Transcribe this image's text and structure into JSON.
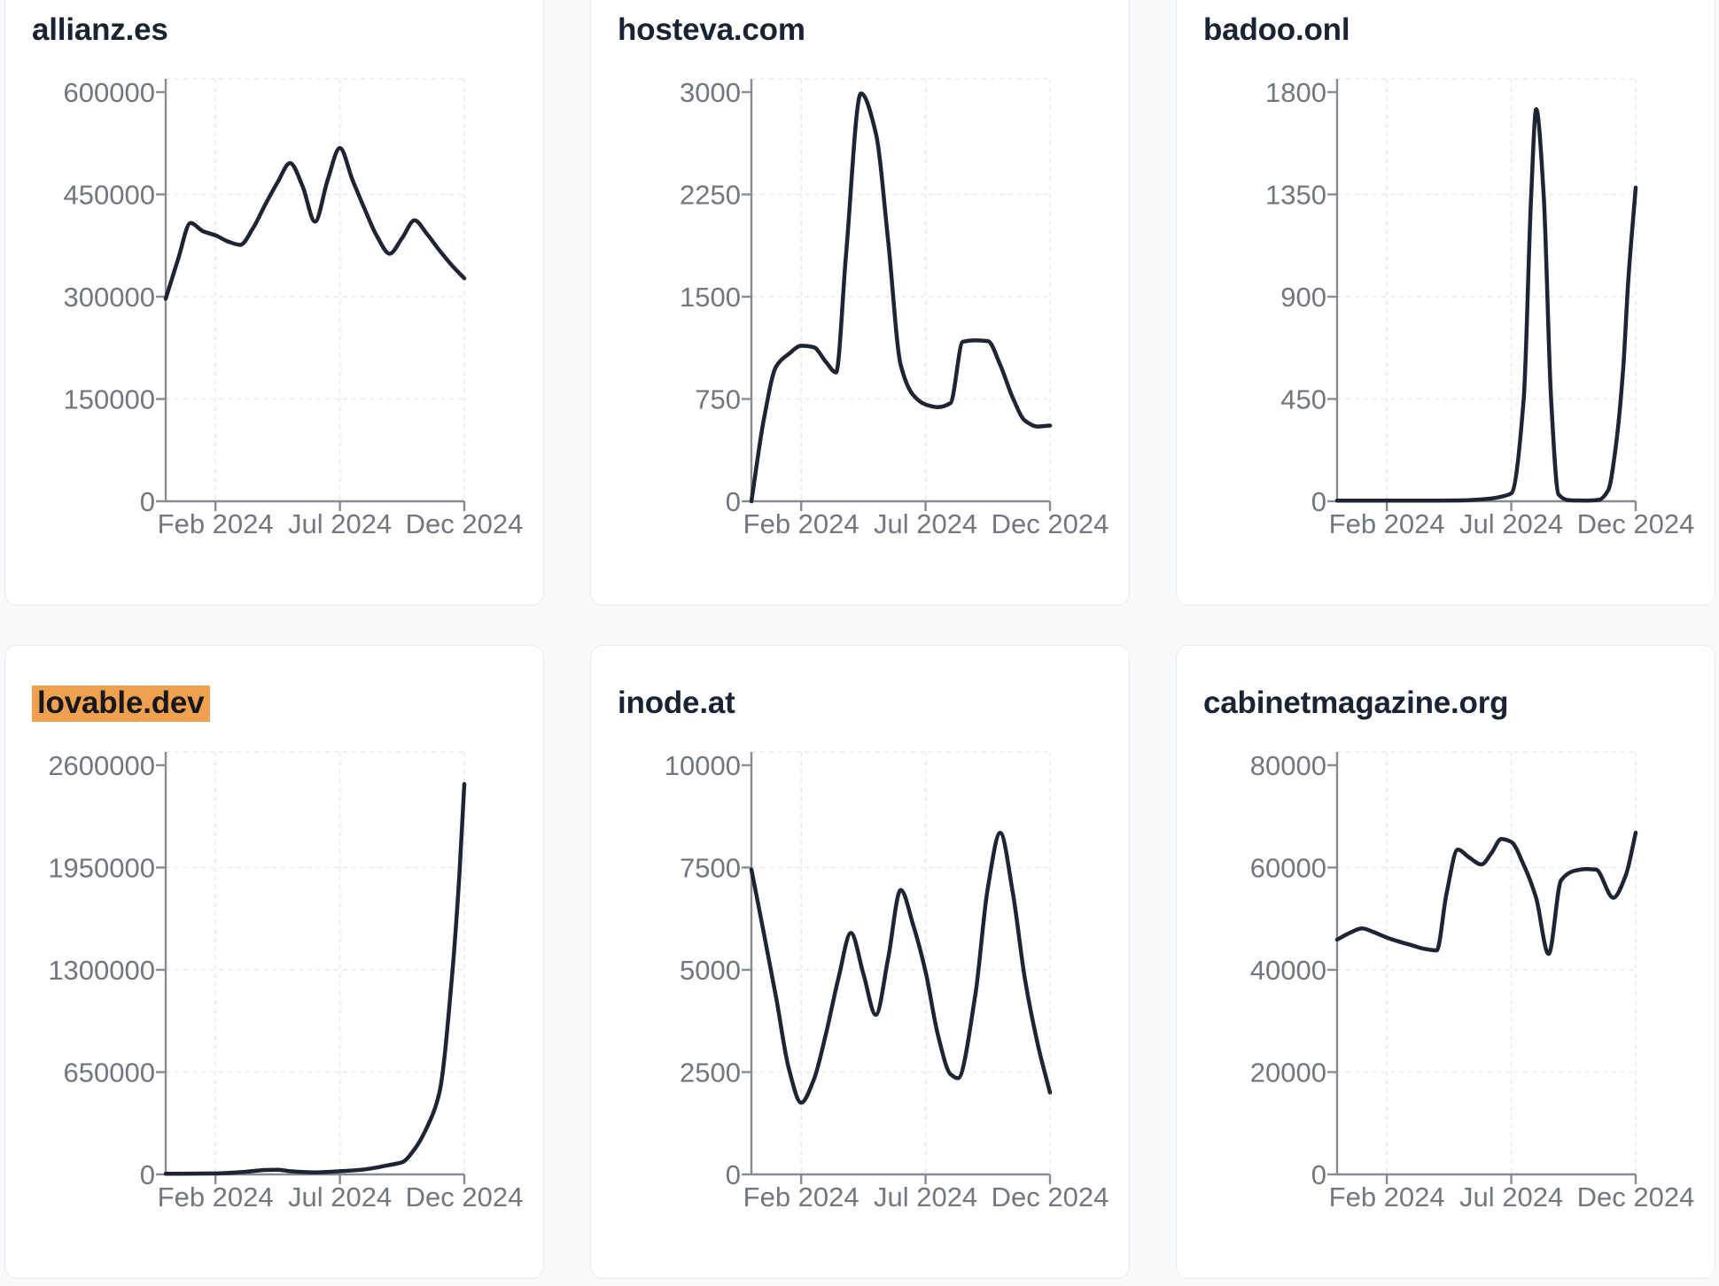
{
  "style": {
    "page_bg": "#f8f9fa",
    "card_bg": "#ffffff",
    "card_border": "#e7ebf1",
    "title_color": "#1a2333",
    "highlight_bg": "#f0a150",
    "line_color": "#1d2433",
    "axis_color": "#878c94",
    "tick_label_color": "#717680",
    "grid_color": "#e8e9eb"
  },
  "chart_data": [
    {
      "type": "line",
      "title": "allianz.es",
      "title_highlight": false,
      "xlabel": "",
      "ylabel": "",
      "ylim": [
        0,
        600000
      ],
      "grid": true,
      "legend": "none",
      "x_unit": "months (0 = Dec 2023, 12 = Dec 2024)",
      "y_ticks": [
        "0",
        "150000",
        "300000",
        "450000",
        "600000"
      ],
      "x_ticks": [
        {
          "label": "Feb 2024",
          "m": 2
        },
        {
          "label": "Jul 2024",
          "m": 7
        },
        {
          "label": "Dec 2024",
          "m": 12
        }
      ],
      "points": [
        [
          0,
          297000
        ],
        [
          0.5,
          355000
        ],
        [
          1,
          408000
        ],
        [
          1.5,
          396000
        ],
        [
          2,
          390000
        ],
        [
          2.5,
          381000
        ],
        [
          3,
          376000
        ],
        [
          3.5,
          400000
        ],
        [
          4,
          435000
        ],
        [
          4.5,
          468000
        ],
        [
          5,
          496000
        ],
        [
          5.5,
          462000
        ],
        [
          6,
          410000
        ],
        [
          6.5,
          470000
        ],
        [
          7,
          518000
        ],
        [
          7.5,
          472000
        ],
        [
          8,
          428000
        ],
        [
          8.5,
          388000
        ],
        [
          9,
          363000
        ],
        [
          9.5,
          386000
        ],
        [
          10,
          412000
        ],
        [
          10.5,
          392000
        ],
        [
          11,
          368000
        ],
        [
          11.5,
          346000
        ],
        [
          12,
          327000
        ]
      ]
    },
    {
      "type": "line",
      "title": "hosteva.com",
      "title_highlight": false,
      "xlabel": "",
      "ylabel": "",
      "ylim": [
        0,
        3000
      ],
      "grid": true,
      "legend": "none",
      "x_unit": "months (0 = Dec 2023, 12 = Dec 2024)",
      "y_ticks": [
        "0",
        "750",
        "1500",
        "2250",
        "3000"
      ],
      "x_ticks": [
        {
          "label": "Feb 2024",
          "m": 2
        },
        {
          "label": "Jul 2024",
          "m": 7
        },
        {
          "label": "Dec 2024",
          "m": 12
        }
      ],
      "points": [
        [
          0,
          0
        ],
        [
          0.5,
          600
        ],
        [
          1,
          990
        ],
        [
          1.5,
          1080
        ],
        [
          2,
          1140
        ],
        [
          2.5,
          1130
        ],
        [
          3,
          1020
        ],
        [
          3.4,
          945
        ],
        [
          3.8,
          1800
        ],
        [
          4.4,
          2990
        ],
        [
          5,
          2700
        ],
        [
          5.5,
          1900
        ],
        [
          6,
          1000
        ],
        [
          6.5,
          780
        ],
        [
          7,
          710
        ],
        [
          7.5,
          690
        ],
        [
          8,
          720
        ],
        [
          8.5,
          1170
        ],
        [
          9,
          1180
        ],
        [
          9.5,
          1175
        ],
        [
          10,
          1000
        ],
        [
          10.5,
          760
        ],
        [
          11,
          590
        ],
        [
          11.5,
          548
        ],
        [
          12,
          555
        ]
      ]
    },
    {
      "type": "line",
      "title": "badoo.onl",
      "title_highlight": false,
      "xlabel": "",
      "ylabel": "",
      "ylim": [
        0,
        1800
      ],
      "grid": true,
      "legend": "none",
      "x_unit": "months (0 = Dec 2023, 12 = Dec 2024)",
      "y_ticks": [
        "0",
        "450",
        "900",
        "1350",
        "1800"
      ],
      "x_ticks": [
        {
          "label": "Feb 2024",
          "m": 2
        },
        {
          "label": "Jul 2024",
          "m": 7
        },
        {
          "label": "Dec 2024",
          "m": 12
        }
      ],
      "points": [
        [
          0,
          3
        ],
        [
          1,
          3
        ],
        [
          2,
          3
        ],
        [
          3,
          3
        ],
        [
          4,
          3
        ],
        [
          5,
          4
        ],
        [
          6,
          10
        ],
        [
          6.5,
          18
        ],
        [
          7,
          35
        ],
        [
          7.5,
          450
        ],
        [
          7.8,
          1350
        ],
        [
          8,
          1725
        ],
        [
          8.3,
          1350
        ],
        [
          8.6,
          450
        ],
        [
          8.9,
          30
        ],
        [
          9.3,
          5
        ],
        [
          10,
          3
        ],
        [
          10.5,
          6
        ],
        [
          10.9,
          50
        ],
        [
          11.2,
          240
        ],
        [
          11.5,
          590
        ],
        [
          11.7,
          970
        ],
        [
          12,
          1380
        ]
      ]
    },
    {
      "type": "line",
      "title": "lovable.dev",
      "title_highlight": true,
      "xlabel": "",
      "ylabel": "",
      "ylim": [
        0,
        2600000
      ],
      "grid": true,
      "legend": "none",
      "x_unit": "months (0 = Dec 2023, 12 = Dec 2024)",
      "y_ticks": [
        "0",
        "650000",
        "1300000",
        "1950000",
        "2600000"
      ],
      "x_ticks": [
        {
          "label": "Feb 2024",
          "m": 2
        },
        {
          "label": "Jul 2024",
          "m": 7
        },
        {
          "label": "Dec 2024",
          "m": 12
        }
      ],
      "points": [
        [
          0,
          4000
        ],
        [
          1,
          5000
        ],
        [
          2,
          6000
        ],
        [
          3,
          14000
        ],
        [
          4,
          28000
        ],
        [
          4.5,
          30000
        ],
        [
          5,
          20000
        ],
        [
          6,
          13000
        ],
        [
          7,
          20000
        ],
        [
          8,
          32000
        ],
        [
          9,
          60000
        ],
        [
          9.5,
          77000
        ],
        [
          10,
          160000
        ],
        [
          10.5,
          300000
        ],
        [
          11,
          520000
        ],
        [
          11.5,
          1250000
        ],
        [
          11.8,
          1900000
        ],
        [
          12,
          2480000
        ]
      ]
    },
    {
      "type": "line",
      "title": "inode.at",
      "title_highlight": false,
      "xlabel": "",
      "ylabel": "",
      "ylim": [
        0,
        10000
      ],
      "grid": true,
      "legend": "none",
      "x_unit": "months (0 = Dec 2023, 12 = Dec 2024)",
      "y_ticks": [
        "0",
        "2500",
        "5000",
        "7500",
        "10000"
      ],
      "x_ticks": [
        {
          "label": "Feb 2024",
          "m": 2
        },
        {
          "label": "Jul 2024",
          "m": 7
        },
        {
          "label": "Dec 2024",
          "m": 12
        }
      ],
      "points": [
        [
          0,
          7450
        ],
        [
          0.5,
          5900
        ],
        [
          1,
          4300
        ],
        [
          1.5,
          2600
        ],
        [
          2,
          1750
        ],
        [
          2.5,
          2300
        ],
        [
          3,
          3450
        ],
        [
          3.5,
          4800
        ],
        [
          4,
          5900
        ],
        [
          4.5,
          4900
        ],
        [
          5,
          3900
        ],
        [
          5.5,
          5300
        ],
        [
          6,
          6950
        ],
        [
          6.5,
          6100
        ],
        [
          7,
          4950
        ],
        [
          7.5,
          3400
        ],
        [
          8,
          2450
        ],
        [
          8.3,
          2350
        ],
        [
          9,
          4400
        ],
        [
          9.5,
          7000
        ],
        [
          10,
          8350
        ],
        [
          10.5,
          6900
        ],
        [
          11,
          4750
        ],
        [
          11.5,
          3200
        ],
        [
          12,
          2000
        ]
      ]
    },
    {
      "type": "line",
      "title": "cabinetmagazine.org",
      "title_highlight": false,
      "xlabel": "",
      "ylabel": "",
      "ylim": [
        0,
        80000
      ],
      "grid": true,
      "legend": "none",
      "x_unit": "months (0 = Dec 2023, 12 = Dec 2024)",
      "y_ticks": [
        "0",
        "20000",
        "40000",
        "60000",
        "80000"
      ],
      "x_ticks": [
        {
          "label": "Feb 2024",
          "m": 2
        },
        {
          "label": "Jul 2024",
          "m": 7
        },
        {
          "label": "Dec 2024",
          "m": 12
        }
      ],
      "points": [
        [
          0,
          45900
        ],
        [
          0.5,
          47200
        ],
        [
          1,
          48100
        ],
        [
          1.5,
          47300
        ],
        [
          2,
          46300
        ],
        [
          2.5,
          45500
        ],
        [
          3,
          44800
        ],
        [
          3.5,
          44100
        ],
        [
          4,
          43800
        ],
        [
          4.4,
          55000
        ],
        [
          4.85,
          63500
        ],
        [
          5.3,
          62000
        ],
        [
          5.8,
          60600
        ],
        [
          6.2,
          62800
        ],
        [
          6.6,
          65600
        ],
        [
          7,
          65000
        ],
        [
          7.5,
          60500
        ],
        [
          8,
          54000
        ],
        [
          8.5,
          43100
        ],
        [
          9,
          57500
        ],
        [
          9.5,
          59300
        ],
        [
          10,
          59700
        ],
        [
          10.4,
          59600
        ],
        [
          11.1,
          54100
        ],
        [
          11.6,
          58500
        ],
        [
          12,
          66800
        ]
      ]
    }
  ]
}
